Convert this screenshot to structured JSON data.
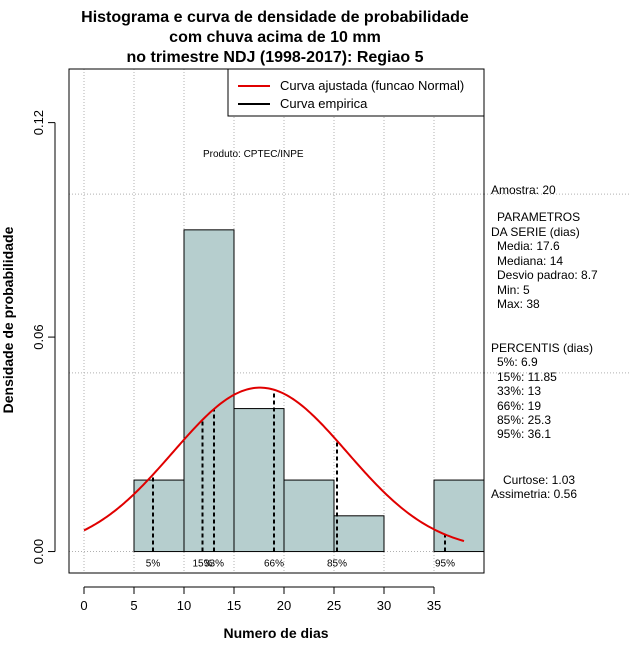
{
  "chart_data": {
    "type": "bar",
    "title_lines": [
      "Histograma e curva de densidade de probabilidade",
      "com chuva acima de 10 mm",
      "no trimestre NDJ (1998-2017): Regiao 5"
    ],
    "xlabel": "Numero de dias",
    "ylabel": "Densidade de probabilidade",
    "xlim": [
      -1.5,
      40
    ],
    "ylim": [
      -0.006,
      0.135
    ],
    "x_ticks": [
      0,
      5,
      10,
      15,
      20,
      25,
      30,
      35
    ],
    "y_ticks": [
      0.0,
      0.06,
      0.12
    ],
    "y_tick_labels": [
      "0.00",
      "0.06",
      "0.12"
    ],
    "grid": true,
    "bins": [
      {
        "start": 5,
        "end": 10,
        "density": 0.02
      },
      {
        "start": 10,
        "end": 15,
        "density": 0.09
      },
      {
        "start": 15,
        "end": 20,
        "density": 0.04
      },
      {
        "start": 20,
        "end": 25,
        "density": 0.02
      },
      {
        "start": 25,
        "end": 30,
        "density": 0.01
      },
      {
        "start": 30,
        "end": 35,
        "density": 0.0
      },
      {
        "start": 35,
        "end": 40,
        "density": 0.02
      }
    ],
    "normal_fit": {
      "mean": 17.6,
      "sd": 8.7,
      "x_from": 0,
      "x_to": 38
    },
    "percentile_lines": [
      {
        "label": "5%",
        "value": 6.9,
        "show_label": true
      },
      {
        "label": "15%",
        "value": 11.85,
        "show_label": true
      },
      {
        "label": "33%",
        "value": 13,
        "show_label": true
      },
      {
        "label": "66%",
        "value": 19,
        "show_label": true
      },
      {
        "label": "85%",
        "value": 25.3,
        "show_label": true
      },
      {
        "label": "95%",
        "value": 36.1,
        "show_label": true
      }
    ],
    "legend": {
      "position": "top-right",
      "entries": [
        {
          "label": "Curva ajustada (funcao Normal)",
          "color": "#e00000"
        },
        {
          "label": "Curva empirica",
          "color": "#000000"
        }
      ]
    },
    "annotation": "Produto: CPTEC/INPE"
  },
  "side_panel": {
    "amostra": "Amostra: 20",
    "params_title_1": "PARAMETROS",
    "params_title_2": "DA SERIE (dias)",
    "media": "Media: 17.6",
    "mediana": "Mediana: 14",
    "desvio": "Desvio padrao: 8.7",
    "min": "Min: 5",
    "max": "Max: 38",
    "percentis_title": "PERCENTIS (dias)",
    "p5": "5%: 6.9",
    "p15": "15%: 11.85",
    "p33": "33%: 13",
    "p66": "66%: 19",
    "p85": "85%: 25.3",
    "p95": "95%: 36.1",
    "curtose": "Curtose: 1.03",
    "assimetria": "Assimetria: 0.56"
  },
  "colors": {
    "bar_fill": "#b6cece",
    "curve": "#e00000",
    "grid": "#b0b0b0"
  }
}
